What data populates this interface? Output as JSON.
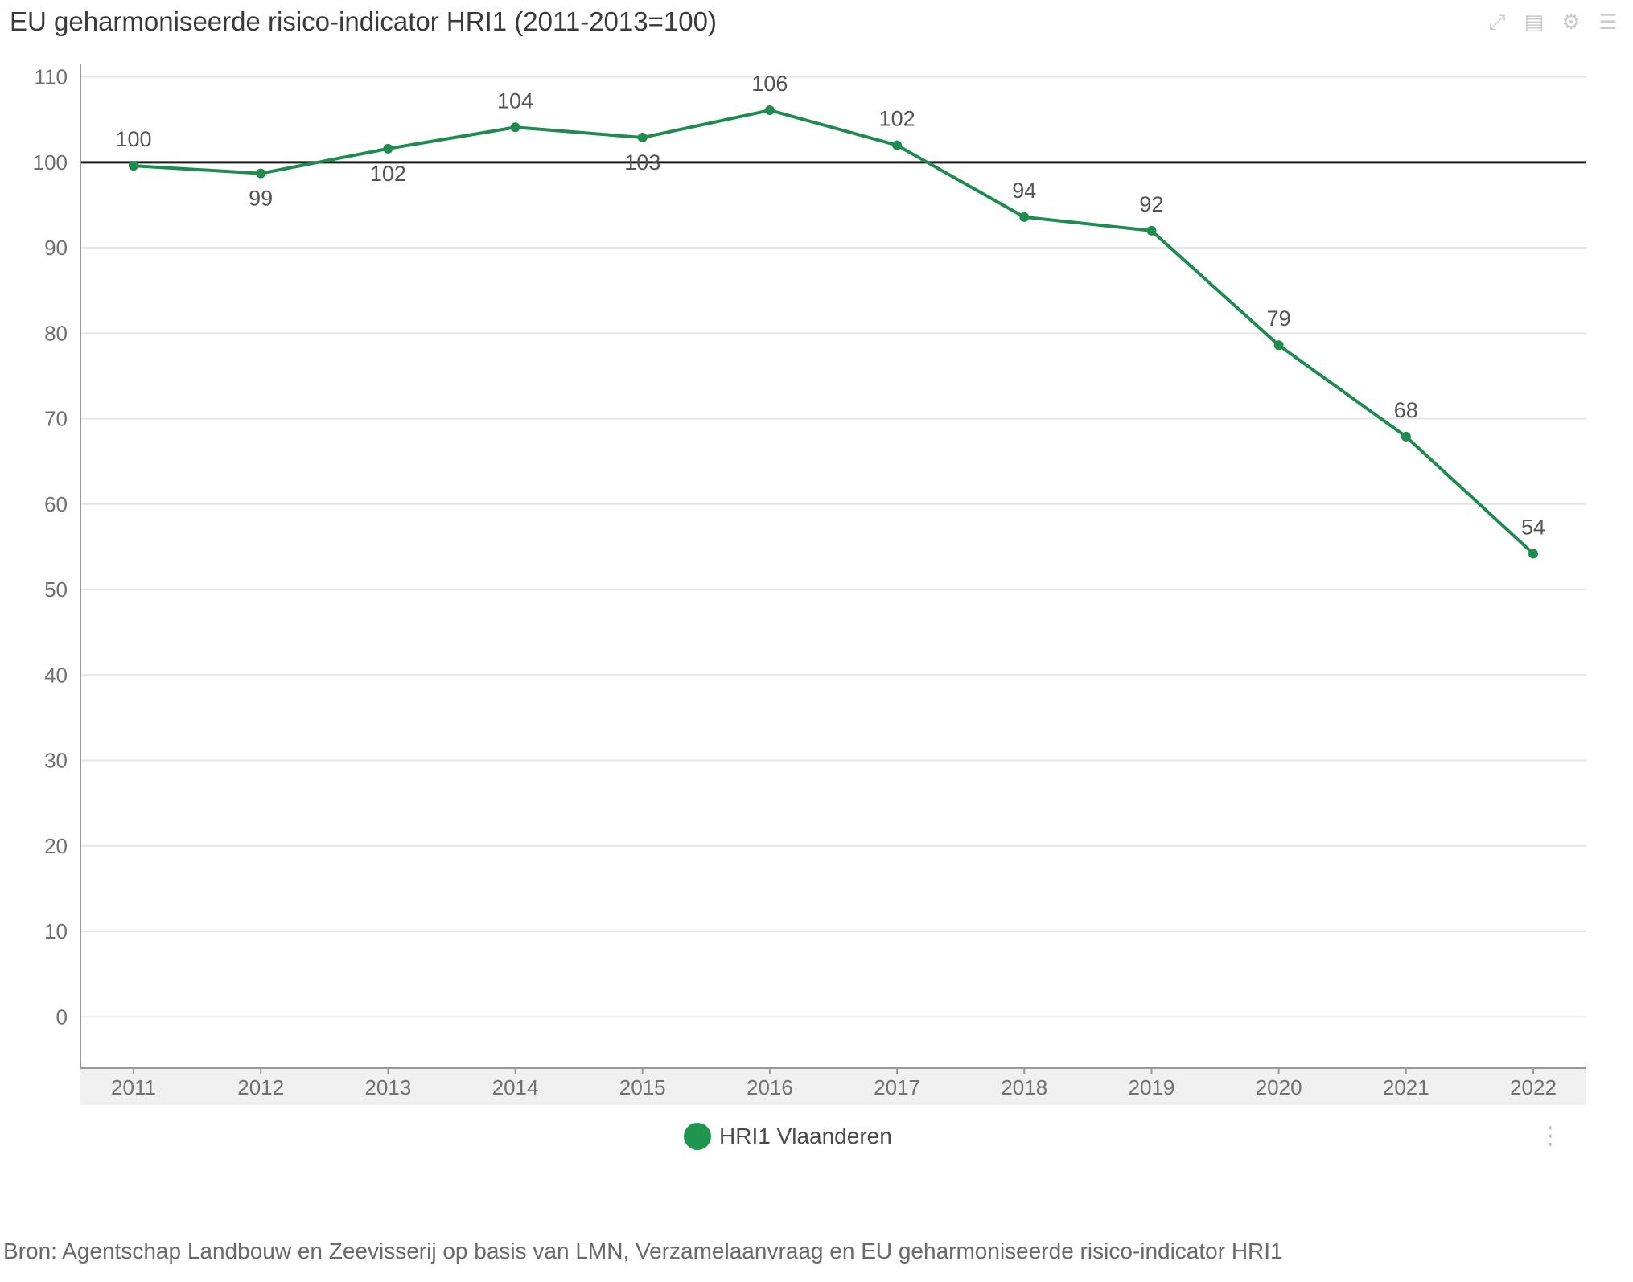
{
  "title": "EU geharmoniseerde risico-indicator HRI1 (2011-2013=100)",
  "toolbar": {
    "icons": [
      "expand-icon",
      "table-icon",
      "settings-icon",
      "menu-icon"
    ],
    "glyphs": [
      "⤢",
      "▤",
      "⚙",
      "☰"
    ]
  },
  "chart_data": {
    "type": "line",
    "title": "EU geharmoniseerde risico-indicator HRI1 (2011-2013=100)",
    "categories": [
      "2011",
      "2012",
      "2013",
      "2014",
      "2015",
      "2016",
      "2017",
      "2018",
      "2019",
      "2020",
      "2021",
      "2022"
    ],
    "series": [
      {
        "name": "HRI1 Vlaanderen",
        "values": [
          99.6,
          98.7,
          101.6,
          104.1,
          102.9,
          106.1,
          102.0,
          93.6,
          92.0,
          78.6,
          67.9,
          54.2
        ],
        "labels": [
          "100",
          "99",
          "102",
          "104",
          "103",
          "106",
          "102",
          "94",
          "92",
          "79",
          "68",
          "54"
        ],
        "label_positions": [
          "above",
          "below",
          "below",
          "above",
          "below",
          "above",
          "above",
          "above",
          "above",
          "above",
          "above",
          "above"
        ],
        "color": "#1e8c4e"
      }
    ],
    "reference_line": 100,
    "yticks": [
      0,
      10,
      20,
      30,
      40,
      50,
      60,
      70,
      80,
      90,
      100,
      110
    ],
    "ylim": [
      -6,
      111
    ],
    "grid": true,
    "legend": "bottom-center",
    "xlabel": "",
    "ylabel": ""
  },
  "legend": {
    "label": "HRI1 Vlaanderen",
    "color": "#1e9650"
  },
  "menu_glyph": "⋮",
  "source": "Bron: Agentschap Landbouw en Zeevisserij op basis van LMN, Verzamelaanvraag en EU geharmoniseerde risico-indicator HRI1"
}
